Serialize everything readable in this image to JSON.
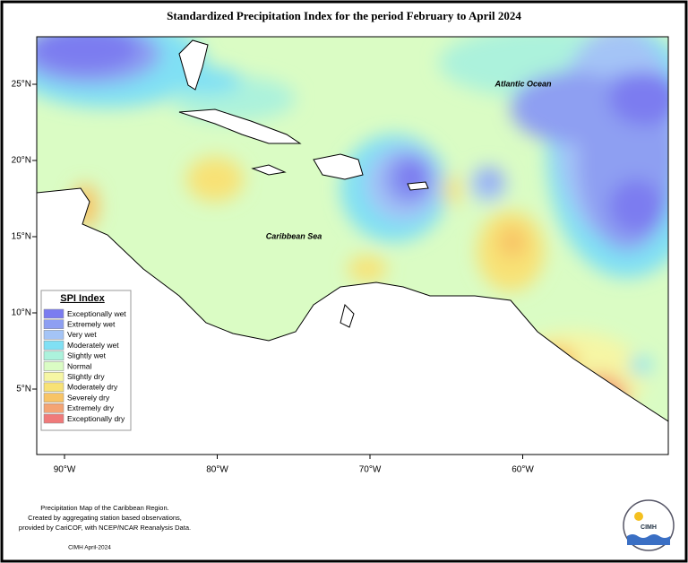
{
  "title": "Standardized Precipitation Index for the period February to April 2024",
  "map": {
    "labels": [
      "Atlantic Ocean",
      "Caribbean Sea"
    ],
    "lat_ticks": [
      "25°N",
      "20°N",
      "15°N",
      "10°N",
      "5°N"
    ],
    "lon_ticks": [
      "90°W",
      "80°W",
      "70°W",
      "60°W"
    ]
  },
  "legend": {
    "title": "SPI Index",
    "items": [
      {
        "label": "Exceptionally wet",
        "color": "#7b7cf0"
      },
      {
        "label": "Extremely wet",
        "color": "#8e9ff2"
      },
      {
        "label": "Very wet",
        "color": "#a4c4f6"
      },
      {
        "label": "Moderately wet",
        "color": "#80e0f4"
      },
      {
        "label": "Slightly wet",
        "color": "#acf2dc"
      },
      {
        "label": "Normal",
        "color": "#dafcc4"
      },
      {
        "label": "Slightly dry",
        "color": "#f6f6a4"
      },
      {
        "label": "Moderately dry",
        "color": "#f8e276"
      },
      {
        "label": "Severely dry",
        "color": "#f8c466"
      },
      {
        "label": "Extremely dry",
        "color": "#f4a474"
      },
      {
        "label": "Exceptionally dry",
        "color": "#f07a7a"
      }
    ]
  },
  "footer": {
    "lines": [
      "Precipitation Map of the Caribbean Region.",
      "Created by aggregating station based observations,",
      "provided by CariCOF, with NCEP/NCAR Reanalysis Data."
    ],
    "credit": "CIMH April-2024"
  },
  "logo": {
    "text": "CIMH"
  }
}
